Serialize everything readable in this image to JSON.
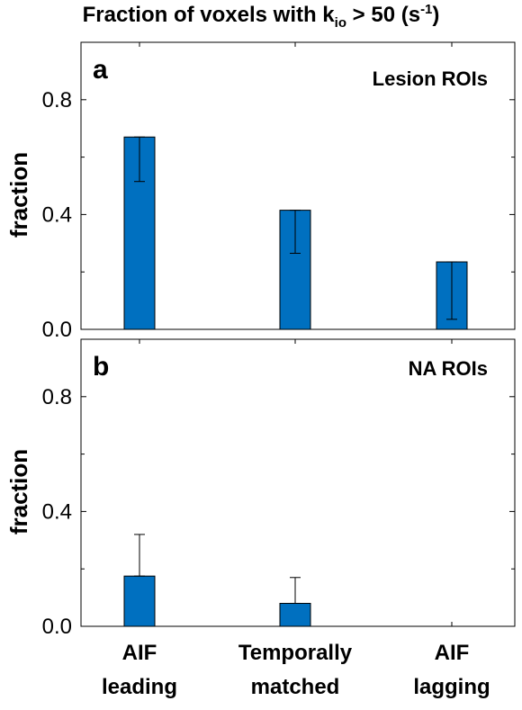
{
  "title": {
    "main": "Fraction of voxels with k",
    "sub": "io",
    "mid": " > 50 (s",
    "sup": "-1",
    "end": ")"
  },
  "colors": {
    "bar": "#0070C0",
    "edge": "#000000",
    "axis": "#000000"
  },
  "chart_data": [
    {
      "type": "bar",
      "panel_label": "a",
      "annotation": "Lesion ROIs",
      "ylabel": "fraction",
      "ylim": [
        0,
        1.0
      ],
      "yticks": [
        0.0,
        0.4,
        0.8
      ],
      "ytick_labels": [
        "0.0",
        "0.4",
        "0.8"
      ],
      "categories": [
        "AIF leading",
        "Temporally matched",
        "AIF lagging"
      ],
      "values": [
        0.67,
        0.415,
        0.235
      ],
      "error_low": [
        0.515,
        0.265,
        0.035
      ],
      "error_high": [
        0.67,
        0.415,
        0.235
      ]
    },
    {
      "type": "bar",
      "panel_label": "b",
      "annotation": "NA ROIs",
      "ylabel": "fraction",
      "ylim": [
        0,
        1.0
      ],
      "yticks": [
        0.0,
        0.4,
        0.8
      ],
      "ytick_labels": [
        "0.0",
        "0.4",
        "0.8"
      ],
      "categories": [
        "AIF leading",
        "Temporally matched",
        "AIF lagging"
      ],
      "values": [
        0.175,
        0.08,
        0.0
      ],
      "error_low": [
        0.175,
        0.08,
        0.0
      ],
      "error_high": [
        0.32,
        0.17,
        0.0
      ]
    }
  ],
  "xtick_labels": [
    [
      "AIF",
      "leading"
    ],
    [
      "Temporally",
      "matched"
    ],
    [
      "AIF",
      "lagging"
    ]
  ]
}
